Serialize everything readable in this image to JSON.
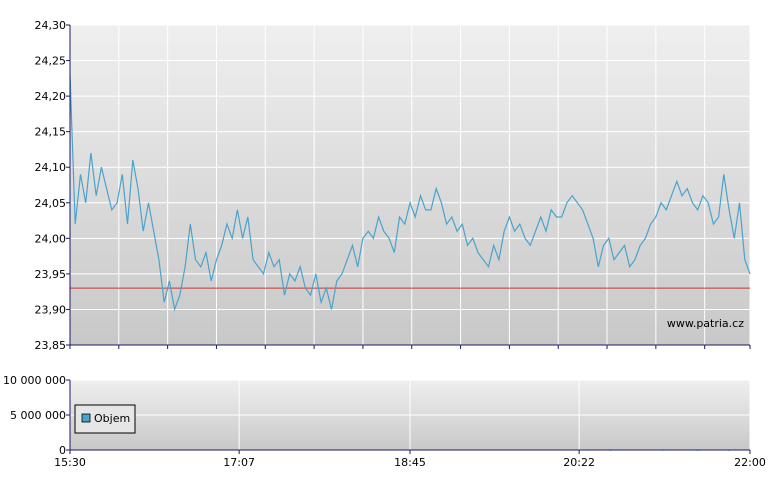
{
  "colors": {
    "line": "#4aa3cc",
    "reference_line": "#cc3333",
    "plot_bg_top": "#efefef",
    "plot_bg_bottom": "#c8c8c8",
    "grid": "#ffffff",
    "axis": "#1a1a66",
    "legend_swatch": "#4aa3cc"
  },
  "watermark": "www.patria.cz",
  "chart_data": [
    {
      "type": "line",
      "name": "price",
      "title": "",
      "xlabel": "",
      "ylabel": "",
      "xlim": [
        0,
        390
      ],
      "ylim": [
        23.85,
        24.3
      ],
      "y_ticks": [
        "24,30",
        "24,25",
        "24,20",
        "24,15",
        "24,10",
        "24,05",
        "24,00",
        "23,95",
        "23,90",
        "23,85"
      ],
      "y_tick_values": [
        24.3,
        24.25,
        24.2,
        24.15,
        24.1,
        24.05,
        24.0,
        23.95,
        23.9,
        23.85
      ],
      "reference_line": 23.93,
      "grid": true,
      "x_grid_minutes": [
        0,
        28,
        56,
        84,
        112,
        140,
        168,
        196,
        224,
        252,
        280,
        308,
        336,
        364,
        390
      ],
      "x": [
        0,
        3,
        6,
        9,
        12,
        15,
        18,
        21,
        24,
        27,
        30,
        33,
        36,
        39,
        42,
        45,
        48,
        51,
        54,
        57,
        60,
        63,
        66,
        69,
        72,
        75,
        78,
        81,
        84,
        87,
        90,
        93,
        96,
        99,
        102,
        105,
        108,
        111,
        114,
        117,
        120,
        123,
        126,
        129,
        132,
        135,
        138,
        141,
        144,
        147,
        150,
        153,
        156,
        159,
        162,
        165,
        168,
        171,
        174,
        177,
        180,
        183,
        186,
        189,
        192,
        195,
        198,
        201,
        204,
        207,
        210,
        213,
        216,
        219,
        222,
        225,
        228,
        231,
        234,
        237,
        240,
        243,
        246,
        249,
        252,
        255,
        258,
        261,
        264,
        267,
        270,
        273,
        276,
        279,
        282,
        285,
        288,
        291,
        294,
        297,
        300,
        303,
        306,
        309,
        312,
        315,
        318,
        321,
        324,
        327,
        330,
        333,
        336,
        339,
        342,
        345,
        348,
        351,
        354,
        357,
        360,
        363,
        366,
        369,
        372,
        375,
        378,
        381,
        384,
        387,
        390
      ],
      "series": [
        {
          "values": [
            24.23,
            24.02,
            24.09,
            24.05,
            24.12,
            24.06,
            24.1,
            24.07,
            24.04,
            24.05,
            24.09,
            24.02,
            24.11,
            24.07,
            24.01,
            24.05,
            24.01,
            23.97,
            23.91,
            23.94,
            23.9,
            23.92,
            23.96,
            24.02,
            23.97,
            23.96,
            23.98,
            23.94,
            23.97,
            23.99,
            24.02,
            24.0,
            24.04,
            24.0,
            24.03,
            23.97,
            23.96,
            23.95,
            23.98,
            23.96,
            23.97,
            23.92,
            23.95,
            23.94,
            23.96,
            23.93,
            23.92,
            23.95,
            23.91,
            23.93,
            23.9,
            23.94,
            23.95,
            23.97,
            23.99,
            23.96,
            24.0,
            24.01,
            24.0,
            24.03,
            24.01,
            24.0,
            23.98,
            24.03,
            24.02,
            24.05,
            24.03,
            24.06,
            24.04,
            24.04,
            24.07,
            24.05,
            24.02,
            24.03,
            24.01,
            24.02,
            23.99,
            24.0,
            23.98,
            23.97,
            23.96,
            23.99,
            23.97,
            24.01,
            24.03,
            24.01,
            24.02,
            24.0,
            23.99,
            24.01,
            24.03,
            24.01,
            24.04,
            24.03,
            24.03,
            24.05,
            24.06,
            24.05,
            24.04,
            24.02,
            24.0,
            23.96,
            23.99,
            24.0,
            23.97,
            23.98,
            23.99,
            23.96,
            23.97,
            23.99,
            24.0,
            24.02,
            24.03,
            24.05,
            24.04,
            24.06,
            24.08,
            24.06,
            24.07,
            24.05,
            24.04,
            24.06,
            24.05,
            24.02,
            24.03,
            24.09,
            24.04,
            24.0,
            24.05,
            23.97,
            23.95
          ]
        }
      ]
    },
    {
      "type": "bar",
      "name": "volume",
      "ylim": [
        0,
        10000000
      ],
      "y_ticks": [
        "10 000 000",
        "5 000 000",
        "0"
      ],
      "y_tick_values": [
        10000000,
        5000000,
        0
      ],
      "x_ticks": [
        "15:30",
        "17:07",
        "18:45",
        "20:22",
        "22:00"
      ],
      "x_tick_minutes": [
        0,
        97,
        195,
        292,
        390
      ],
      "grid": true,
      "legend": "Objem",
      "legend_placement": "bottom-left",
      "x": [
        297,
        310,
        340,
        360,
        378
      ],
      "values": [
        60000,
        40000,
        50000,
        30000,
        40000
      ]
    }
  ]
}
